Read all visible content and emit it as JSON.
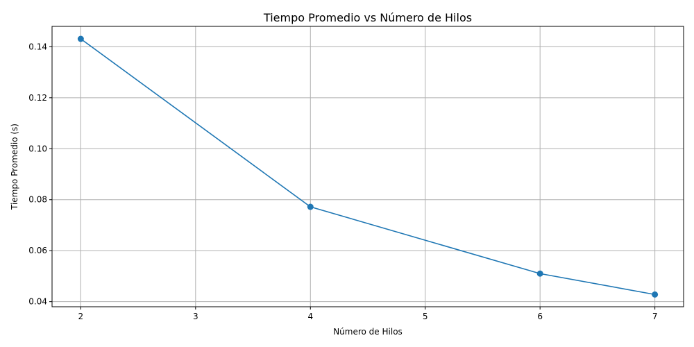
{
  "chart_data": {
    "type": "line",
    "title": "Tiempo Promedio vs Número de Hilos",
    "xlabel": "Número de Hilos",
    "ylabel": "Tiempo Promedio (s)",
    "xlim": [
      1.75,
      7.25
    ],
    "ylim": [
      0.038,
      0.148
    ],
    "xticks": [
      2,
      3,
      4,
      5,
      6,
      7
    ],
    "xtick_labels": [
      "2",
      "3",
      "4",
      "5",
      "6",
      "7"
    ],
    "yticks": [
      0.04,
      0.06,
      0.08,
      0.1,
      0.12,
      0.14
    ],
    "ytick_labels": [
      "0.04",
      "0.06",
      "0.08",
      "0.10",
      "0.12",
      "0.14"
    ],
    "grid": true,
    "series": [
      {
        "name": "Tiempo Promedio",
        "color": "#1f77b4",
        "marker": "circle",
        "x": [
          2,
          4,
          6,
          7
        ],
        "y": [
          0.1431,
          0.0772,
          0.051,
          0.0428
        ]
      }
    ]
  }
}
